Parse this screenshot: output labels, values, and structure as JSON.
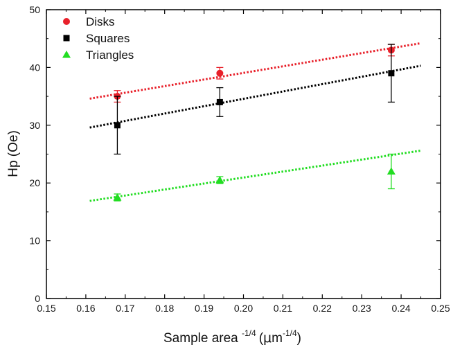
{
  "chart_data": {
    "type": "scatter",
    "title": "",
    "xlabel": "Sample area",
    "xlabel_sup1": "-1/4",
    "xlabel_unit_open": "(",
    "xlabel_unit_greek": "μ",
    "xlabel_unit_rest": "m",
    "xlabel_sup2": "-1/4",
    "xlabel_unit_close": ")",
    "ylabel": "Hp (Oe)",
    "xlim": [
      0.15,
      0.25
    ],
    "ylim": [
      0,
      50
    ],
    "xticks": [
      "0.15",
      "0.16",
      "0.17",
      "0.18",
      "0.19",
      "0.20",
      "0.21",
      "0.22",
      "0.23",
      "0.24",
      "0.25"
    ],
    "yticks": [
      "0",
      "10",
      "20",
      "30",
      "40",
      "50"
    ],
    "grid": false,
    "legend_position": "top-left",
    "series": [
      {
        "name": "Disks",
        "marker": "circle",
        "color": "#e8202a",
        "x": [
          0.168,
          0.194,
          0.2375
        ],
        "y": [
          35,
          39,
          43
        ],
        "err": [
          1,
          1,
          1
        ],
        "fit": {
          "x": [
            0.161,
            0.245
          ],
          "y": [
            34.6,
            44.2
          ]
        }
      },
      {
        "name": "Squares",
        "marker": "square",
        "color": "#000000",
        "x": [
          0.168,
          0.194,
          0.2375
        ],
        "y": [
          30,
          34,
          39
        ],
        "err": [
          5,
          2.5,
          5
        ],
        "fit": {
          "x": [
            0.161,
            0.245
          ],
          "y": [
            29.6,
            40.3
          ]
        }
      },
      {
        "name": "Triangles",
        "marker": "triangle",
        "color": "#22dd22",
        "x": [
          0.168,
          0.194,
          0.2375
        ],
        "y": [
          17.5,
          20.5,
          22
        ],
        "err": [
          0.6,
          0.6,
          3
        ],
        "fit": {
          "x": [
            0.161,
            0.245
          ],
          "y": [
            16.9,
            25.6
          ]
        }
      }
    ]
  }
}
